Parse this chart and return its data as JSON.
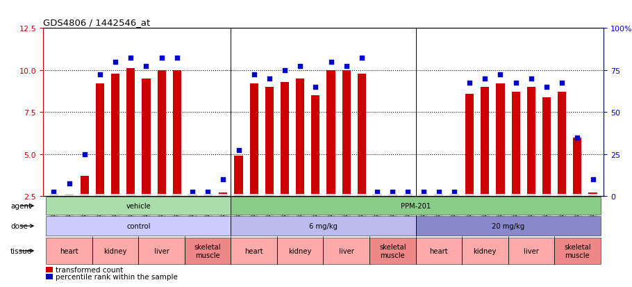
{
  "title": "GDS4806 / 1442546_at",
  "samples": [
    "GSM783280",
    "GSM783281",
    "GSM783282",
    "GSM783289",
    "GSM783290",
    "GSM783291",
    "GSM783298",
    "GSM783299",
    "GSM783300",
    "GSM783307",
    "GSM783308",
    "GSM783309",
    "GSM783283",
    "GSM783284",
    "GSM783285",
    "GSM783292",
    "GSM783293",
    "GSM783294",
    "GSM783301",
    "GSM783302",
    "GSM783303",
    "GSM783310",
    "GSM783311",
    "GSM783312",
    "GSM783286",
    "GSM783287",
    "GSM783288",
    "GSM783295",
    "GSM783296",
    "GSM783297",
    "GSM783304",
    "GSM783305",
    "GSM783306",
    "GSM783313",
    "GSM783314",
    "GSM783315"
  ],
  "transformed_count": [
    2.6,
    2.6,
    3.7,
    9.2,
    9.8,
    10.1,
    9.5,
    10.0,
    10.0,
    2.6,
    2.6,
    2.7,
    4.9,
    9.2,
    9.0,
    9.3,
    9.5,
    8.5,
    10.0,
    10.0,
    9.8,
    2.6,
    2.6,
    2.6,
    2.6,
    2.6,
    2.6,
    8.6,
    9.0,
    9.2,
    8.7,
    9.0,
    8.4,
    8.7,
    6.0,
    2.7
  ],
  "percentile_rank": [
    2.5,
    7.5,
    25.0,
    72.5,
    80.0,
    82.5,
    77.5,
    82.5,
    82.5,
    2.5,
    2.5,
    10.0,
    27.5,
    72.5,
    70.0,
    75.0,
    77.5,
    65.0,
    80.0,
    77.5,
    82.5,
    2.5,
    2.5,
    2.5,
    2.5,
    2.5,
    2.5,
    67.5,
    70.0,
    72.5,
    67.5,
    70.0,
    65.0,
    67.5,
    35.0,
    10.0
  ],
  "ylim_left": [
    2.5,
    12.5
  ],
  "ylim_right": [
    0,
    100
  ],
  "yticks_left": [
    2.5,
    5.0,
    7.5,
    10.0,
    12.5
  ],
  "yticks_right": [
    0,
    25,
    50,
    75,
    100
  ],
  "bar_color": "#cc0000",
  "dot_color": "#0000cc",
  "background_color": "#ffffff",
  "agent_groups": [
    {
      "label": "vehicle",
      "start": 0,
      "end": 11,
      "color": "#aaddaa"
    },
    {
      "label": "PPM-201",
      "start": 12,
      "end": 35,
      "color": "#88cc88"
    }
  ],
  "dose_groups": [
    {
      "label": "control",
      "start": 0,
      "end": 11,
      "color": "#ccccff"
    },
    {
      "label": "6 mg/kg",
      "start": 12,
      "end": 23,
      "color": "#bbbbee"
    },
    {
      "label": "20 mg/kg",
      "start": 24,
      "end": 35,
      "color": "#8888cc"
    }
  ],
  "tissue_groups": [
    {
      "label": "heart",
      "start": 0,
      "end": 2
    },
    {
      "label": "kidney",
      "start": 3,
      "end": 5
    },
    {
      "label": "liver",
      "start": 6,
      "end": 8
    },
    {
      "label": "skeletal\nmuscle",
      "start": 9,
      "end": 11
    },
    {
      "label": "heart",
      "start": 12,
      "end": 14
    },
    {
      "label": "kidney",
      "start": 15,
      "end": 17
    },
    {
      "label": "liver",
      "start": 18,
      "end": 20
    },
    {
      "label": "skeletal\nmuscle",
      "start": 21,
      "end": 23
    },
    {
      "label": "heart",
      "start": 24,
      "end": 26
    },
    {
      "label": "kidney",
      "start": 27,
      "end": 29
    },
    {
      "label": "liver",
      "start": 30,
      "end": 32
    },
    {
      "label": "skeletal\nmuscle",
      "start": 33,
      "end": 35
    }
  ],
  "tissue_colors": [
    "#ffaaaa",
    "#ffaaaa",
    "#ffaaaa",
    "#ee8888",
    "#ffaaaa",
    "#ffaaaa",
    "#ffaaaa",
    "#ee8888",
    "#ffaaaa",
    "#ffaaaa",
    "#ffaaaa",
    "#ee8888"
  ],
  "axis_color_left": "#cc0000",
  "axis_color_right": "#0000cc",
  "group_dividers": [
    11.5,
    23.5
  ],
  "gridline_y": [
    5.0,
    7.5,
    10.0
  ]
}
